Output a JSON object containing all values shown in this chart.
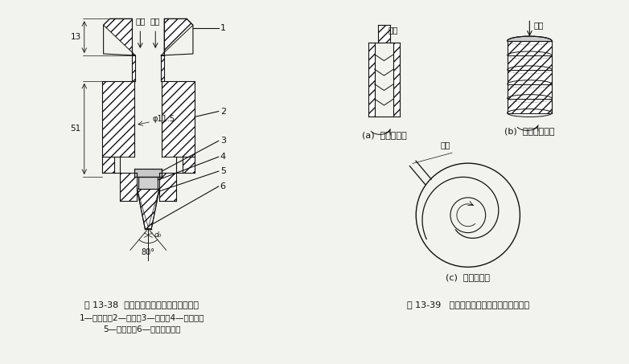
{
  "bg_color": "#f2f2ee",
  "title_left": "图 13-38  工业使用的旋转型压力喷嘴结构",
  "caption_left1": "1—管接头；2—螺帽；3—孔板；4—旋转室；",
  "caption_left2": "5—喷嘴套；6—人造宝石喷嘴",
  "title_right": "图 13-39   离心型压力喷嘴内插头结构示意图",
  "label_a": "(a)  斜槽内插头",
  "label_b": "(b)  螺旋槽内插头",
  "label_c": "(c)  旋涡片入口",
  "dim_phi": "φ11.5",
  "dim_13": "13",
  "dim_51": "51",
  "dim_80": "80°",
  "dim_d0": "d₀",
  "liquid1": "液体",
  "liquid2": "液体",
  "liquid_flow_a": "液流",
  "liquid_flow_b": "液流",
  "liquid_flow_c": "液流",
  "num1": "1",
  "num2": "2",
  "num3": "3",
  "num4": "4",
  "num5": "5",
  "num6": "6"
}
